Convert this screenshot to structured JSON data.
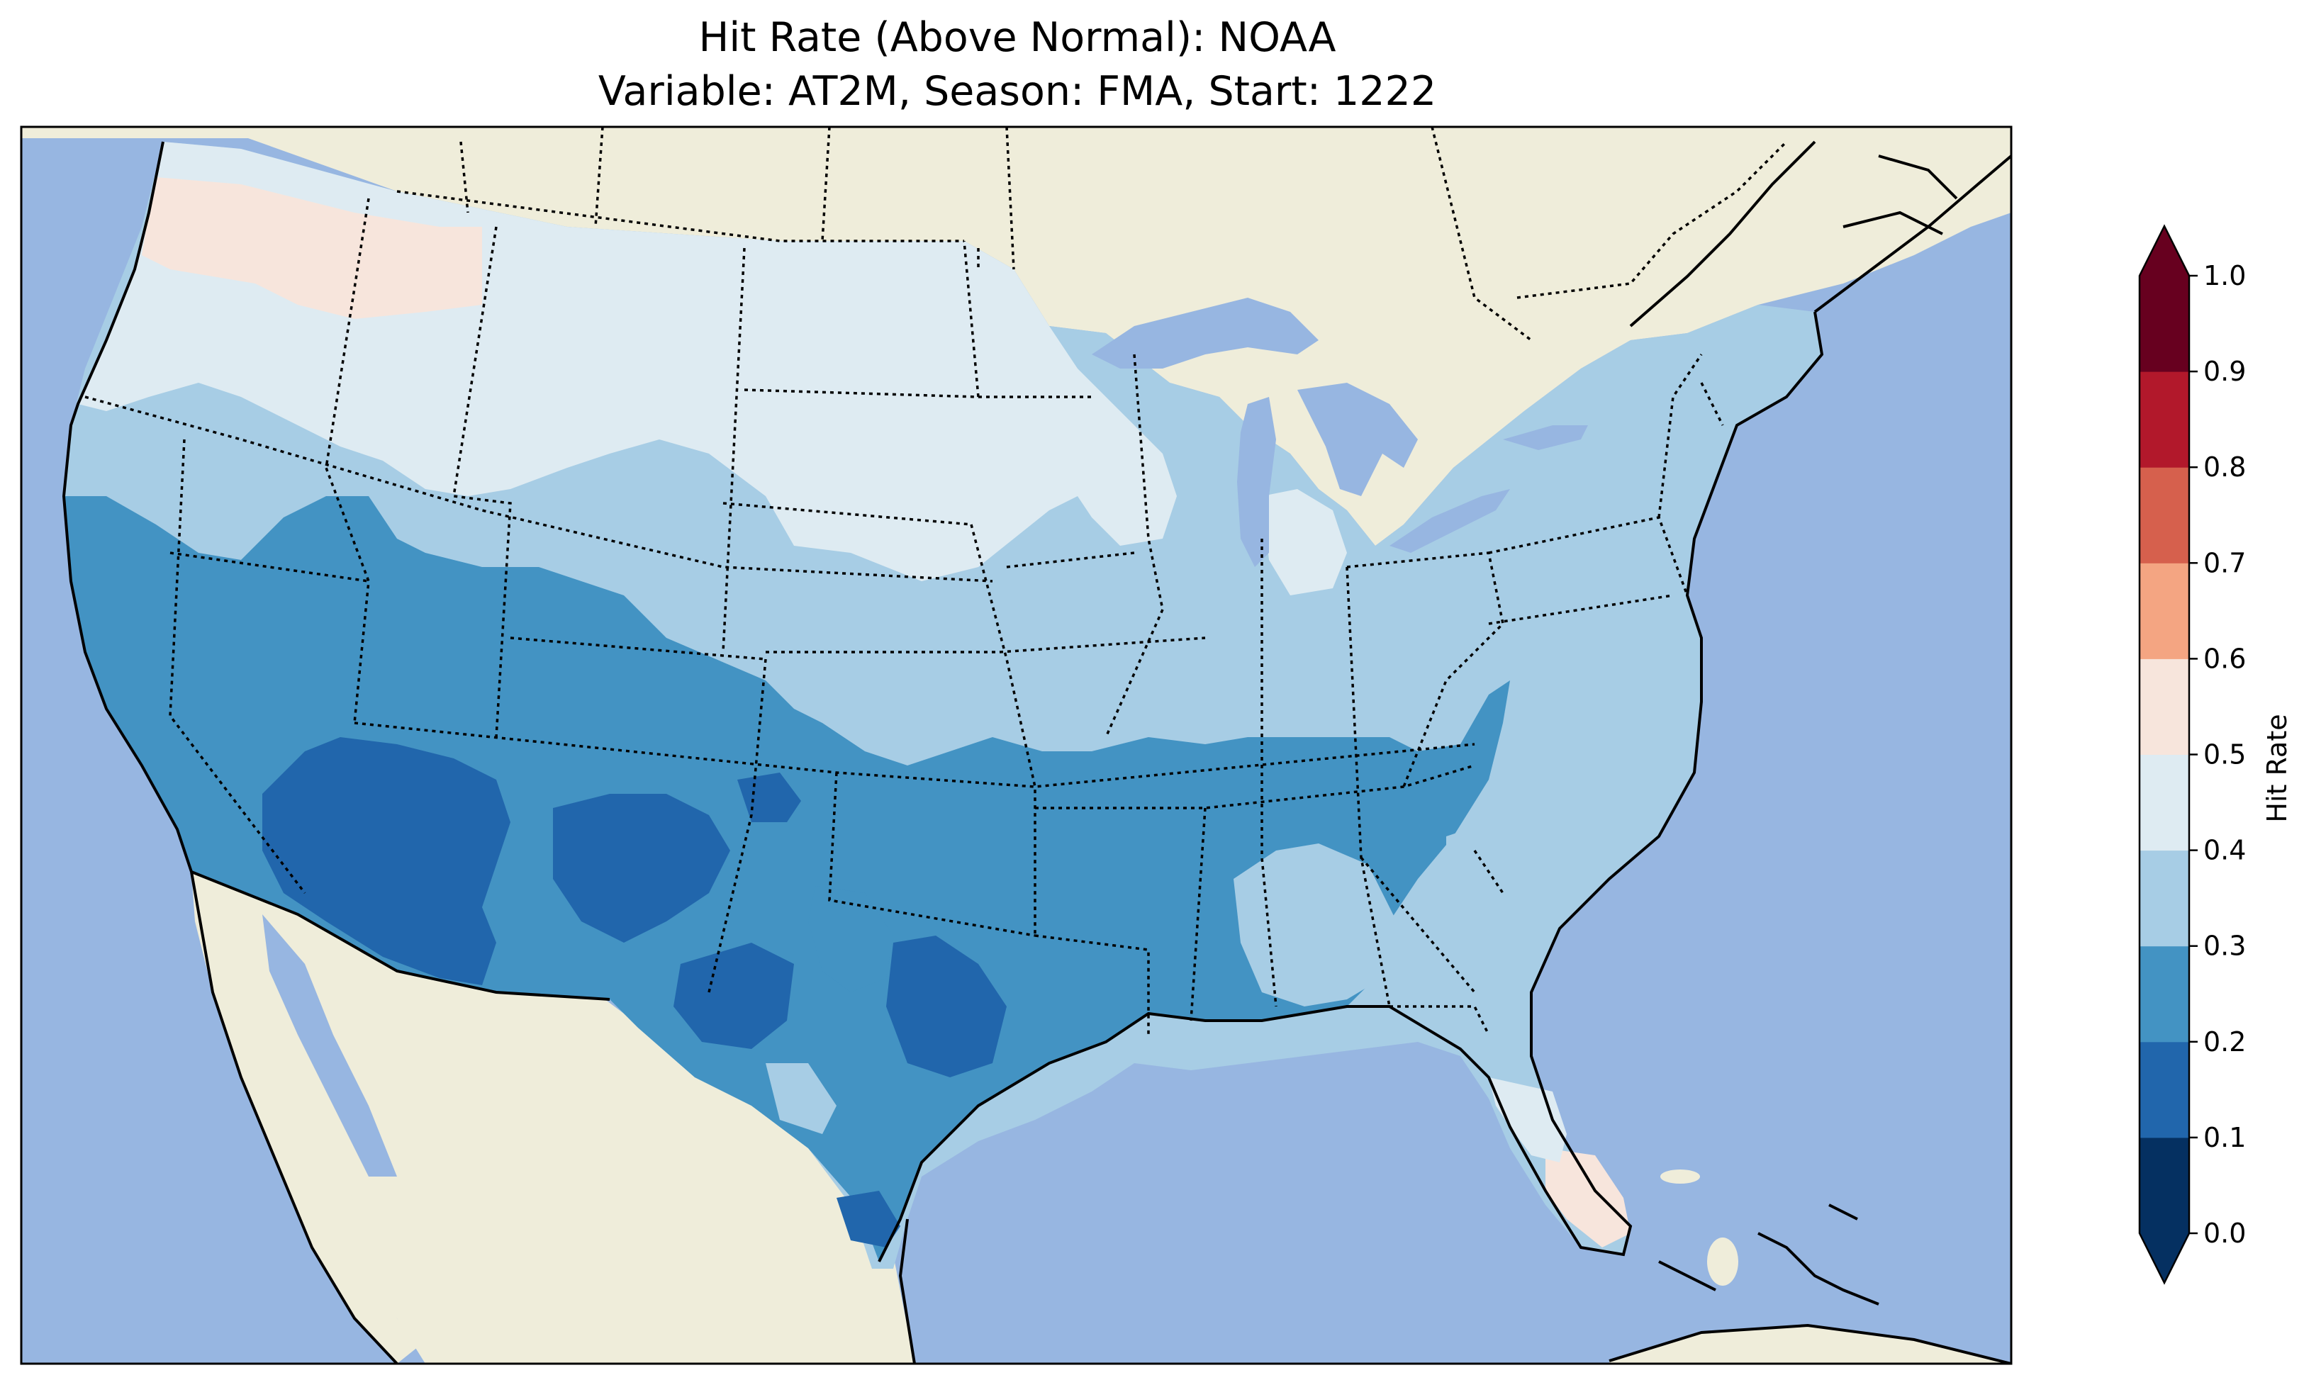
{
  "title": {
    "line1": "Hit Rate (Above Normal): NOAA",
    "line2": "Variable: AT2M, Season: FMA, Start: 1222"
  },
  "map": {
    "ocean_color": "#97b6e1",
    "land_color": "#efedda",
    "lake_color": "#97b6e1",
    "region": "Contiguous United States",
    "features": [
      "coastlines",
      "state-borders",
      "country-borders",
      "lakes"
    ]
  },
  "colorbar": {
    "label": "Hit Rate",
    "cmap": "RdBu_r",
    "extend": "both",
    "ticks": [
      "0.0",
      "0.1",
      "0.2",
      "0.3",
      "0.4",
      "0.5",
      "0.6",
      "0.7",
      "0.8",
      "0.9",
      "1.0"
    ],
    "bins": [
      {
        "from": 0.0,
        "to": 0.1,
        "color": "#053061"
      },
      {
        "from": 0.1,
        "to": 0.2,
        "color": "#2166ac"
      },
      {
        "from": 0.2,
        "to": 0.3,
        "color": "#4393c3"
      },
      {
        "from": 0.3,
        "to": 0.4,
        "color": "#a7cde5"
      },
      {
        "from": 0.4,
        "to": 0.5,
        "color": "#deebf2"
      },
      {
        "from": 0.5,
        "to": 0.6,
        "color": "#f7e5dc"
      },
      {
        "from": 0.6,
        "to": 0.7,
        "color": "#f4a582"
      },
      {
        "from": 0.7,
        "to": 0.8,
        "color": "#d6604d"
      },
      {
        "from": 0.8,
        "to": 0.9,
        "color": "#b2182b"
      },
      {
        "from": 0.9,
        "to": 1.0,
        "color": "#67001f"
      }
    ],
    "under_color": "#053061",
    "over_color": "#67001f"
  },
  "regions": [
    {
      "name": "pacific-northwest-north",
      "value_bin": 0.5
    },
    {
      "name": "northern-plains",
      "value_bin": 0.4
    },
    {
      "name": "great-lakes",
      "value_bin": 0.4
    },
    {
      "name": "west-coast",
      "value_bin": 0.3
    },
    {
      "name": "southwest-desert",
      "value_bin": 0.1
    },
    {
      "name": "texas-central",
      "value_bin": 0.1
    },
    {
      "name": "southeast",
      "value_bin": 0.3
    },
    {
      "name": "south-florida",
      "value_bin": 0.5
    },
    {
      "name": "north-florida",
      "value_bin": 0.4
    }
  ]
}
